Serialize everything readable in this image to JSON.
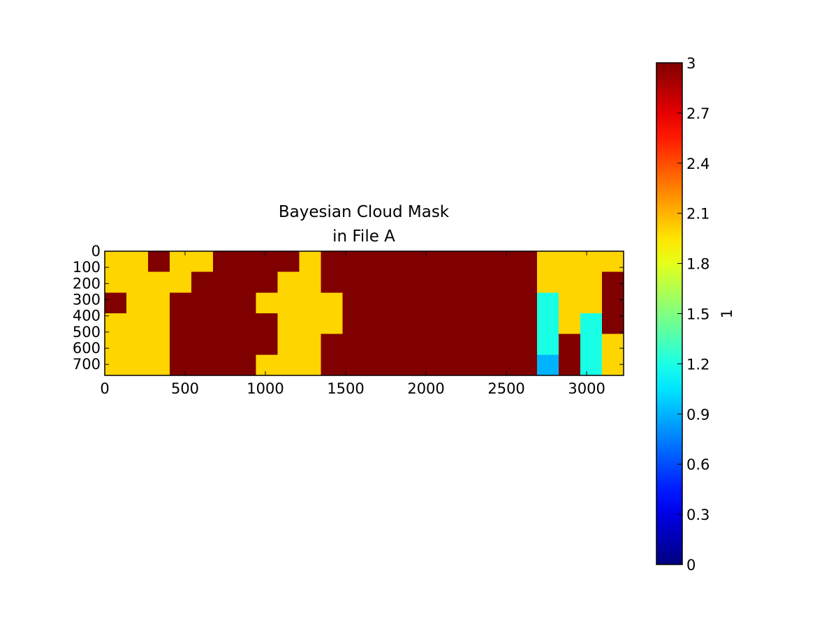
{
  "chart_data": {
    "type": "heatmap",
    "title": "Bayesian Cloud Mask\nin File A",
    "colormap": "jet",
    "xlim": [
      0,
      3230
    ],
    "ylim": [
      768,
      0
    ],
    "xticks": [
      0,
      500,
      1000,
      1500,
      2000,
      2500,
      3000
    ],
    "yticks": [
      0,
      100,
      200,
      300,
      400,
      500,
      600,
      700
    ],
    "values": [
      [
        2,
        2,
        3,
        2,
        2,
        3,
        3,
        3,
        3,
        2,
        3,
        3,
        3,
        3,
        3,
        3,
        3,
        3,
        3,
        3,
        2,
        2,
        2,
        2
      ],
      [
        2,
        2,
        2,
        2,
        3,
        3,
        3,
        3,
        2,
        2,
        3,
        3,
        3,
        3,
        3,
        3,
        3,
        3,
        3,
        3,
        2,
        2,
        2,
        3
      ],
      [
        3,
        2,
        2,
        3,
        3,
        3,
        3,
        2,
        2,
        2,
        2,
        3,
        3,
        3,
        3,
        3,
        3,
        3,
        3,
        3,
        1.2,
        2,
        2,
        3
      ],
      [
        2,
        2,
        2,
        3,
        3,
        3,
        3,
        3,
        2,
        2,
        2,
        3,
        3,
        3,
        3,
        3,
        3,
        3,
        3,
        3,
        1.2,
        2,
        1.2,
        3
      ],
      [
        2,
        2,
        2,
        3,
        3,
        3,
        3,
        3,
        2,
        2,
        3,
        3,
        3,
        3,
        3,
        3,
        3,
        3,
        3,
        3,
        1.2,
        3,
        1.2,
        2
      ],
      [
        2,
        2,
        2,
        3,
        3,
        3,
        3,
        2,
        2,
        2,
        3,
        3,
        3,
        3,
        3,
        3,
        3,
        3,
        3,
        3,
        0.9,
        3,
        1.2,
        2
      ]
    ],
    "colorbar": {
      "lim": [
        0,
        3
      ],
      "ticks": [
        0,
        0.3,
        0.6,
        0.9,
        1.2,
        1.5,
        1.8,
        2.1,
        2.4,
        2.7,
        3
      ],
      "label": "1"
    }
  }
}
